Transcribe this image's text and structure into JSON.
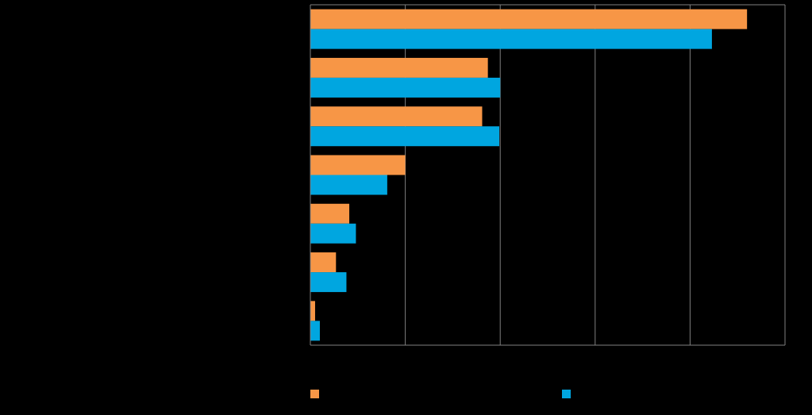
{
  "chart_data": {
    "type": "bar",
    "orientation": "horizontal",
    "categories": [
      "",
      "",
      "",
      "",
      "",
      "",
      ""
    ],
    "series": [
      {
        "values": [
          46,
          18.7,
          18.1,
          10,
          4.1,
          2.7,
          0.5
        ],
        "color": "#F79646"
      },
      {
        "values": [
          42.3,
          20,
          19.9,
          8.1,
          4.8,
          3.8,
          1
        ],
        "color": "#00A6E0"
      }
    ],
    "xlim": [
      0,
      50
    ],
    "x_gridlines": [
      0,
      10,
      20,
      30,
      40,
      50
    ],
    "grid": true,
    "legend_position": "bottom",
    "background": "#000000",
    "gridline_color": "#7f7f7f"
  }
}
